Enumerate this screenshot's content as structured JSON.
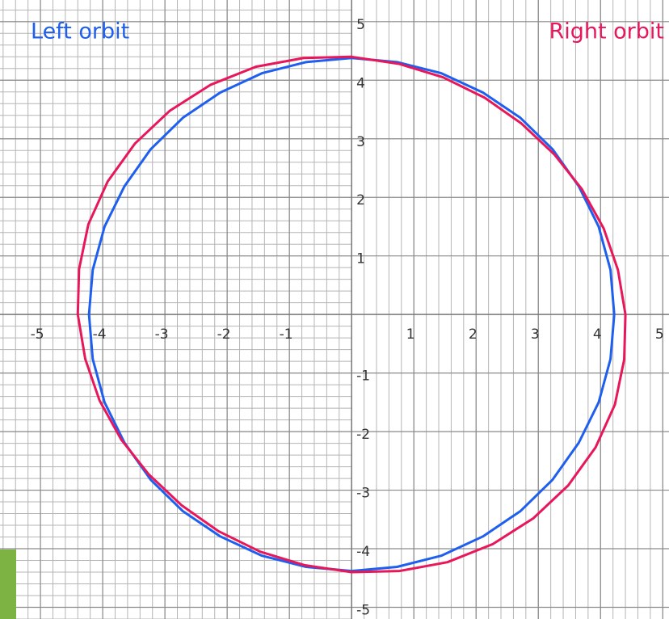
{
  "chart_data": {
    "type": "line",
    "xlim": [
      -5.65,
      5.1
    ],
    "ylim": [
      -5.2,
      5.37
    ],
    "xticks": [
      -5,
      -4,
      -3,
      -2,
      -1,
      1,
      2,
      3,
      4,
      5
    ],
    "yticks": [
      -5,
      -4,
      -3,
      -2,
      -1,
      1,
      2,
      3,
      4,
      5
    ],
    "grid": true,
    "series": [
      {
        "name": "Left orbit",
        "color": "#1f5ff0",
        "x": [
          4.22,
          4.16,
          3.97,
          3.65,
          3.23,
          2.71,
          2.11,
          1.44,
          0.73,
          0,
          -0.73,
          -1.44,
          -2.11,
          -2.71,
          -3.23,
          -3.65,
          -3.97,
          -4.16,
          -4.22,
          -4.16,
          -3.97,
          -3.65,
          -3.23,
          -2.71,
          -2.11,
          -1.44,
          -0.73,
          0,
          0.73,
          1.44,
          2.11,
          2.71,
          3.23,
          3.65,
          3.97,
          4.16,
          4.22
        ],
        "values": [
          0,
          0.76,
          1.5,
          2.19,
          2.82,
          3.36,
          3.79,
          4.12,
          4.31,
          4.38,
          4.31,
          4.12,
          3.79,
          3.36,
          2.82,
          2.19,
          1.5,
          0.76,
          0,
          -0.76,
          -1.5,
          -2.19,
          -2.82,
          -3.36,
          -3.79,
          -4.12,
          -4.31,
          -4.38,
          -4.31,
          -4.12,
          -3.79,
          -3.36,
          -2.82,
          -2.19,
          -1.5,
          -0.76,
          0
        ]
      },
      {
        "name": "Right orbit",
        "color": "#e8175a",
        "x": [
          4.4,
          4.28,
          4.05,
          3.7,
          3.26,
          2.73,
          2.14,
          1.47,
          0.76,
          0,
          -0.77,
          -1.54,
          -2.27,
          -2.92,
          -3.48,
          -3.92,
          -4.23,
          -4.38,
          -4.4,
          -4.28,
          -4.05,
          -3.7,
          -3.26,
          -2.73,
          -2.14,
          -1.47,
          -0.76,
          0,
          0.77,
          1.54,
          2.27,
          2.92,
          3.48,
          3.92,
          4.23,
          4.38,
          4.4
        ],
        "values": [
          0,
          0.76,
          1.47,
          2.14,
          2.73,
          3.26,
          3.7,
          4.05,
          4.28,
          4.4,
          4.38,
          4.23,
          3.92,
          3.48,
          2.92,
          2.27,
          1.54,
          0.77,
          0,
          -0.76,
          -1.47,
          -2.14,
          -2.73,
          -3.26,
          -3.7,
          -4.05,
          -4.28,
          -4.4,
          -4.38,
          -4.23,
          -3.92,
          -3.48,
          -2.92,
          -2.27,
          -1.54,
          -0.77,
          0
        ]
      }
    ]
  }
}
